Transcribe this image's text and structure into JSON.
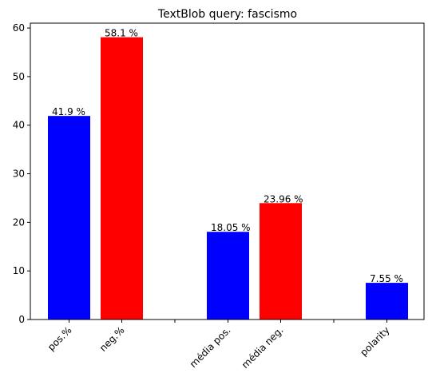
{
  "chart_data": {
    "type": "bar",
    "title": "TextBlob query: fascismo",
    "xlabel": "",
    "ylabel": "",
    "ylim": [
      0,
      61
    ],
    "yticks": [
      0,
      10,
      20,
      30,
      40,
      50,
      60
    ],
    "bars": [
      {
        "category": "pos.%",
        "value": 41.9,
        "label": "41.9 %",
        "color": "#0000ff"
      },
      {
        "category": "neg.%",
        "value": 58.1,
        "label": "58.1 %",
        "color": "#ff0000"
      },
      {
        "category": "média pos.",
        "value": 18.05,
        "label": "18.05 %",
        "color": "#0000ff"
      },
      {
        "category": "média neg.",
        "value": 23.96,
        "label": "23.96 %",
        "color": "#ff0000"
      },
      {
        "category": "polarity",
        "value": 7.55,
        "label": "7.55 %",
        "color": "#0000ff"
      }
    ],
    "grid": false,
    "legend": "none"
  }
}
